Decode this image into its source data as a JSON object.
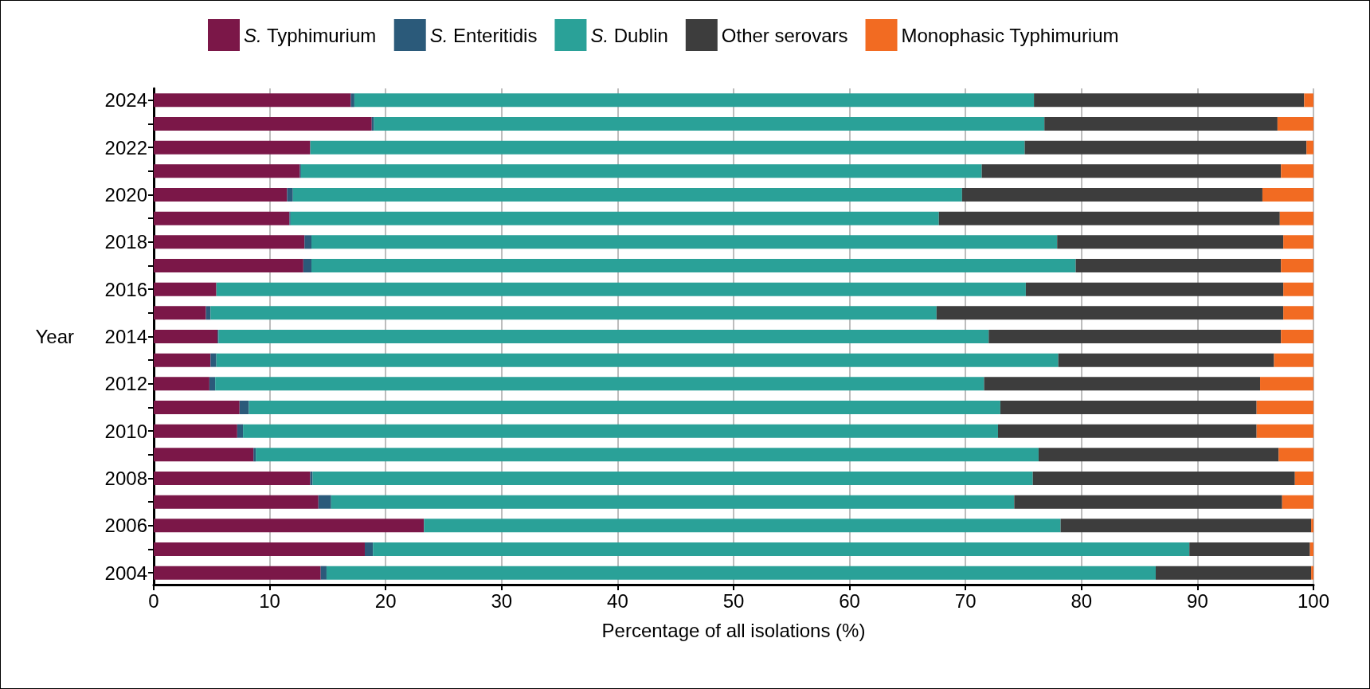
{
  "chart_data": {
    "type": "bar",
    "orientation": "horizontal",
    "stacked": true,
    "xlabel": "Percentage of all isolations (%)",
    "ylabel": "Year",
    "categories": [
      "2024",
      null,
      "2022",
      null,
      "2020",
      null,
      "2018",
      null,
      "2016",
      null,
      "2014",
      null,
      "2012",
      null,
      "2010",
      null,
      "2008",
      null,
      "2006",
      null,
      "2004"
    ],
    "series": [
      {
        "name": "S. Typhimurium",
        "color": "#7b1748",
        "values": [
          17.0,
          18.8,
          13.5,
          12.6,
          11.5,
          11.7,
          13.0,
          12.9,
          5.4,
          4.5,
          5.5,
          4.9,
          4.8,
          7.4,
          7.2,
          8.6,
          13.5,
          14.2,
          23.3,
          18.2,
          14.4
        ]
      },
      {
        "name": "S. Enteritidis",
        "color": "#2b5a7a",
        "values": [
          0.3,
          0.2,
          0,
          0.1,
          0.5,
          0.1,
          0.6,
          0.7,
          0,
          0.4,
          0.1,
          0.5,
          0.5,
          0.8,
          0.5,
          0.2,
          0.2,
          1.1,
          0,
          0.7,
          0.5
        ]
      },
      {
        "name": "S. Dublin",
        "color": "#2aa198",
        "values": [
          58.6,
          57.8,
          61.6,
          58.7,
          57.7,
          55.9,
          64.3,
          65.9,
          69.8,
          62.6,
          66.4,
          72.6,
          66.3,
          64.8,
          65.1,
          67.5,
          62.1,
          58.9,
          54.9,
          70.4,
          71.5
        ]
      },
      {
        "name": "Other serovars",
        "color": "#3d3d3d",
        "values": [
          23.3,
          20.1,
          24.3,
          25.8,
          25.9,
          29.4,
          19.5,
          17.7,
          22.2,
          29.9,
          25.2,
          18.6,
          23.8,
          22.1,
          22.3,
          20.7,
          22.6,
          23.1,
          21.6,
          10.4,
          13.4
        ]
      },
      {
        "name": "Monophasic Typhimurium",
        "color": "#f26b22",
        "values": [
          0.8,
          3.1,
          0.6,
          2.8,
          4.4,
          2.9,
          2.6,
          2.8,
          2.6,
          2.6,
          2.8,
          3.4,
          4.6,
          4.9,
          4.9,
          3.0,
          1.6,
          2.7,
          0.2,
          0.3,
          0.2
        ]
      }
    ],
    "xlim": [
      0,
      100
    ],
    "xticks": [
      0,
      10,
      20,
      30,
      40,
      50,
      60,
      70,
      80,
      90,
      100
    ],
    "grid": "x",
    "legend": "top"
  }
}
